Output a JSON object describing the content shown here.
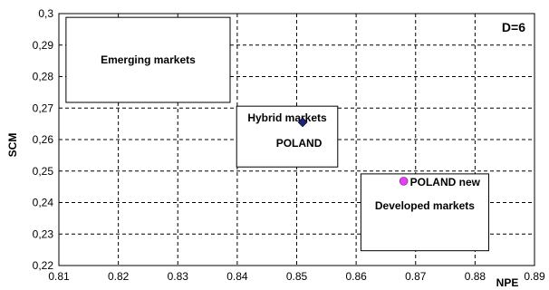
{
  "chart_data": {
    "type": "scatter",
    "xlabel": "NPE",
    "ylabel": "SCM",
    "xlim": [
      0.81,
      0.89
    ],
    "ylim": [
      0.22,
      0.3
    ],
    "x_ticks": [
      "0.81",
      "0.82",
      "0.83",
      "0.84",
      "0.85",
      "0.86",
      "0.87",
      "0.88",
      "0.89"
    ],
    "y_ticks": [
      "0,22",
      "0,23",
      "0,24",
      "0,25",
      "0,26",
      "0,27",
      "0,28",
      "0,29",
      "0,3"
    ],
    "grid": true,
    "corner_label": "D=6",
    "regions": [
      {
        "name": "Emerging markets",
        "x0": 0.8112,
        "x1": 0.8388,
        "y0": 0.2718,
        "y1": 0.2988
      },
      {
        "name": "Hybrid markets",
        "x0": 0.8399,
        "x1": 0.8569,
        "y0": 0.2513,
        "y1": 0.2706
      },
      {
        "name": "Developed markets",
        "x0": 0.8608,
        "x1": 0.8823,
        "y0": 0.2247,
        "y1": 0.2491
      }
    ],
    "points": [
      {
        "label": "POLAND",
        "x": 0.851,
        "y": 0.2655,
        "color": "#1a237e",
        "marker": "diamond"
      },
      {
        "label": "POLAND new",
        "x": 0.868,
        "y": 0.2468,
        "color": "#e040fb",
        "marker": "circle"
      }
    ]
  }
}
